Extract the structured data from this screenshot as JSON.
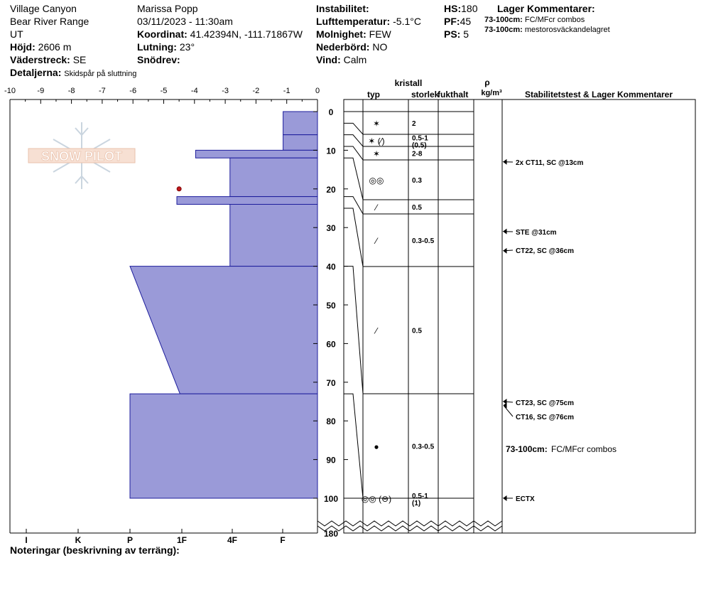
{
  "header": {
    "location": "Village Canyon",
    "range": "Bear River Range",
    "state": "UT",
    "elevation_label": "Höjd:",
    "elevation": "2606 m",
    "aspect_label": "Väderstreck:",
    "aspect": "SE",
    "details_label": "Detaljerna:",
    "details": "Skidspår på sluttning",
    "observer": "Marissa Popp",
    "datetime": "03/11/2023 - 11:30am",
    "coord_label": "Koordinat:",
    "coord": "41.42394N, -111.71867W",
    "slope_label": "Lutning:",
    "slope": "23°",
    "drift_label": "Snödrev:",
    "drift": "",
    "instability_label": "Instabilitet:",
    "instability": "",
    "airtemp_label": "Lufttemperatur:",
    "airtemp": "-5.1°C",
    "cloud_label": "Molnighet:",
    "cloud": "FEW",
    "precip_label": "Nederbörd:",
    "precip": "NO",
    "wind_label": "Vind:",
    "wind": "Calm",
    "hs_label": "HS:",
    "hs": "180",
    "pf_label": "PF:",
    "pf": "45",
    "ps_label": "PS:",
    "ps": "5",
    "layer_comments_label": "Lager Kommentarer:",
    "layer_comments": [
      {
        "range": "73-100cm:",
        "text": "FC/MFcr combos"
      },
      {
        "range": "73-100cm:",
        "text": "mestorosväckandelagret"
      }
    ]
  },
  "columns": {
    "crystal": "kristall",
    "type": "typ",
    "size": "storlek",
    "moisture": "fukthalt",
    "rho": "ρ",
    "density_unit": "kg/m³",
    "stability": "Stabilitetstest & Lager Kommentarer"
  },
  "footer": {
    "notes_label": "Noteringar (beskrivning av terräng):"
  },
  "logo": {
    "text": "SNOW PILOT"
  },
  "chart_data": {
    "type": "bar",
    "title": "",
    "xlabel": "",
    "ylabel": "",
    "x_axis_top": {
      "ticks": [
        -10,
        -9,
        -8,
        -7,
        -6,
        -5,
        -4,
        -3,
        -2,
        -1,
        0
      ],
      "range": [
        -10,
        0
      ]
    },
    "x_axis_bottom": {
      "categories": [
        "I",
        "K",
        "P",
        "1F",
        "4F",
        "F"
      ]
    },
    "y_axis": {
      "ticks": [
        0,
        10,
        20,
        30,
        40,
        50,
        60,
        70,
        80,
        90,
        100,
        180
      ],
      "break_after": 100,
      "bottom_label": "180",
      "inverted": true
    },
    "temperature_points": [
      {
        "depth": 20,
        "temp": -4.5
      }
    ],
    "hardness_layers": [
      {
        "top": 0,
        "bottom": 6,
        "hardness_top": 1.1,
        "hardness_bottom": 1.1
      },
      {
        "top": 6,
        "bottom": 10,
        "hardness_top": 1.1,
        "hardness_bottom": 1.1
      },
      {
        "top": 10,
        "bottom": 12,
        "hardness_top": 3.9,
        "hardness_bottom": 3.9
      },
      {
        "top": 12,
        "bottom": 22,
        "hardness_top": 2.8,
        "hardness_bottom": 2.8
      },
      {
        "top": 22,
        "bottom": 24,
        "hardness_top": 4.5,
        "hardness_bottom": 4.5
      },
      {
        "top": 24,
        "bottom": 40,
        "hardness_top": 2.8,
        "hardness_bottom": 2.8
      },
      {
        "top": 40,
        "bottom": 73,
        "hardness_top": 6.0,
        "hardness_bottom": 4.4
      },
      {
        "top": 73,
        "bottom": 100,
        "hardness_top": 6.0,
        "hardness_bottom": 6.0
      }
    ],
    "layer_boundaries": [
      0,
      3,
      6,
      9,
      12,
      22,
      25,
      40,
      73,
      100
    ],
    "crystal_rows": [
      {
        "top": 0,
        "bottom": 3,
        "symbol": "✶",
        "size": "2",
        "size2": ""
      },
      {
        "top": 3,
        "bottom": 6,
        "symbol": "✶ (⁄)",
        "size": "0.5-1",
        "size2": "(0.5)"
      },
      {
        "top": 6,
        "bottom": 9,
        "symbol": "✶",
        "size": "2-8",
        "size2": ""
      },
      {
        "top": 9,
        "bottom": 12,
        "symbol": "◎◎",
        "size": "0.3",
        "size2": ""
      },
      {
        "top": 12,
        "bottom": 22,
        "symbol": "⁄",
        "size": "0.5",
        "size2": ""
      },
      {
        "top": 22,
        "bottom": 25,
        "symbol": "⁄",
        "size": "0.3-0.5",
        "size2": ""
      },
      {
        "top": 25,
        "bottom": 40,
        "symbol": "⁄",
        "size": "0.5",
        "size2": ""
      },
      {
        "top": 40,
        "bottom": 73,
        "symbol": "●",
        "size": "0.3-0.5",
        "size2": ""
      },
      {
        "top": 73,
        "bottom": 100,
        "symbol": "◎◎ (⊖)",
        "size": "0.5-1",
        "size2": "(1)"
      }
    ],
    "stability_tests": [
      {
        "depth": 13,
        "text": "2x CT11, SC @13cm"
      },
      {
        "depth": 31,
        "text": "STE @31cm"
      },
      {
        "depth": 36,
        "text": "CT22, SC @36cm"
      },
      {
        "depth": 75,
        "text": "CT23, SC @75cm"
      },
      {
        "depth": 76,
        "text": "CT16, SC @76cm"
      },
      {
        "depth": 100,
        "text": "ECTX"
      }
    ],
    "layer_comment": {
      "depth": 87,
      "range": "73-100cm:",
      "text": "FC/MFcr combos"
    }
  }
}
